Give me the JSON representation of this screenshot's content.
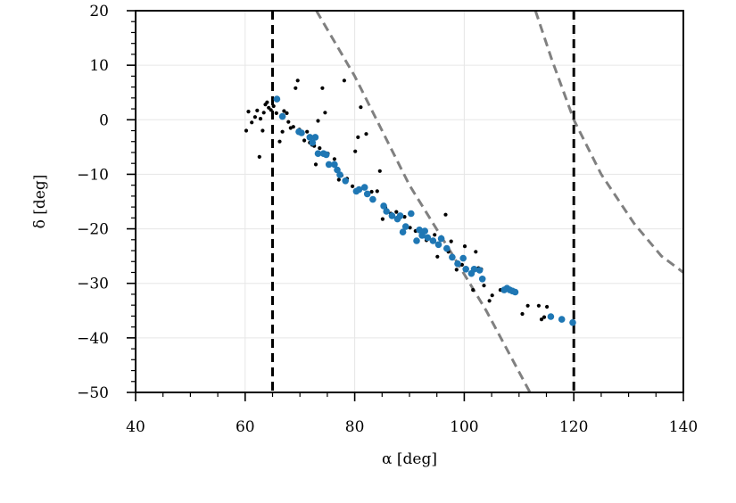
{
  "chart_data": {
    "type": "scatter",
    "xlabel": "α [deg]",
    "ylabel": "δ [deg]",
    "xlim": [
      40,
      140
    ],
    "ylim": [
      -50,
      20
    ],
    "xticks": [
      40,
      60,
      80,
      100,
      120,
      140
    ],
    "yticks": [
      20,
      10,
      0,
      -10,
      -20,
      -30,
      -40,
      -50
    ],
    "xtick_labels": [
      "40",
      "60",
      "80",
      "100",
      "120",
      "140"
    ],
    "ytick_labels": [
      "20",
      "10",
      "0",
      "−10",
      "−20",
      "−30",
      "−40",
      "−50"
    ],
    "grid": true,
    "vertical_lines": [
      65,
      120
    ],
    "curves": [
      {
        "style": "dashed",
        "color": "#808080",
        "points": [
          [
            73,
            20
          ],
          [
            80,
            8
          ],
          [
            90,
            -12
          ],
          [
            98,
            -25
          ],
          [
            104,
            -35
          ],
          [
            112,
            -50
          ]
        ]
      },
      {
        "style": "dashed",
        "color": "#808080",
        "points": [
          [
            113,
            20
          ],
          [
            116,
            11
          ],
          [
            120,
            0
          ],
          [
            125,
            -10
          ],
          [
            131,
            -19
          ],
          [
            136,
            -25
          ],
          [
            140,
            -28
          ]
        ]
      }
    ],
    "series": [
      {
        "color": "#000000",
        "marker": "small-dot",
        "points": [
          [
            60.2,
            -2
          ],
          [
            60.6,
            1.5
          ],
          [
            61.2,
            -0.5
          ],
          [
            61.8,
            0.5
          ],
          [
            62.2,
            1.7
          ],
          [
            62.6,
            -6.8
          ],
          [
            62.8,
            0.2
          ],
          [
            63.2,
            -2
          ],
          [
            63.4,
            1.3
          ],
          [
            63.7,
            2.8
          ],
          [
            64,
            3.2
          ],
          [
            64.3,
            2.2
          ],
          [
            64.7,
            1.8
          ],
          [
            65.2,
            2.5
          ],
          [
            65.7,
            1.2
          ],
          [
            66.3,
            -4
          ],
          [
            66.8,
            -2.2
          ],
          [
            67.1,
            1.6
          ],
          [
            67.6,
            1.2
          ],
          [
            67.9,
            -0.4
          ],
          [
            68.3,
            -1.5
          ],
          [
            68.8,
            -1.3
          ],
          [
            69.2,
            5.8
          ],
          [
            69.6,
            7.2
          ],
          [
            69.9,
            -1.8
          ],
          [
            70.3,
            -2.4
          ],
          [
            70.8,
            -3.8
          ],
          [
            71.3,
            -2.2
          ],
          [
            71.8,
            -4.2
          ],
          [
            72.2,
            -4.6
          ],
          [
            72.6,
            -4.8
          ],
          [
            72.9,
            -8.2
          ],
          [
            73.3,
            -0.2
          ],
          [
            73.6,
            -5.2
          ],
          [
            74.1,
            5.8
          ],
          [
            74.6,
            1.3
          ],
          [
            75.1,
            -6.2
          ],
          [
            76.3,
            -7.2
          ],
          [
            77.1,
            -11
          ],
          [
            77.6,
            -10.2
          ],
          [
            78.1,
            7.2
          ],
          [
            78.6,
            -10.8
          ],
          [
            79.6,
            -12.2
          ],
          [
            80.1,
            -5.8
          ],
          [
            80.6,
            -3.2
          ],
          [
            81.1,
            2.3
          ],
          [
            82.1,
            -2.6
          ],
          [
            83.1,
            -13.2
          ],
          [
            84.1,
            -13.1
          ],
          [
            84.6,
            -9.4
          ],
          [
            85.1,
            -18.2
          ],
          [
            85.6,
            -16.1
          ],
          [
            86.6,
            -17.2
          ],
          [
            87.6,
            -16.9
          ],
          [
            88.1,
            -18.1
          ],
          [
            89.1,
            -17.8
          ],
          [
            90.1,
            -19.8
          ],
          [
            91.1,
            -20.4
          ],
          [
            92.1,
            -20.3
          ],
          [
            93.1,
            -22.1
          ],
          [
            94.6,
            -21.1
          ],
          [
            95.1,
            -25.1
          ],
          [
            96.6,
            -17.4
          ],
          [
            97.1,
            -24.2
          ],
          [
            97.6,
            -22.3
          ],
          [
            98.6,
            -27.5
          ],
          [
            99.6,
            -26.6
          ],
          [
            100.1,
            -23.2
          ],
          [
            101.1,
            -28.2
          ],
          [
            101.6,
            -31.2
          ],
          [
            102.1,
            -24.2
          ],
          [
            102.6,
            -27.2
          ],
          [
            103.1,
            -27.4
          ],
          [
            103.6,
            -30.4
          ],
          [
            104.6,
            -33.2
          ],
          [
            105.1,
            -32.2
          ],
          [
            106.6,
            -31.2
          ],
          [
            107.1,
            -31.4
          ],
          [
            110.6,
            -35.6
          ],
          [
            111.6,
            -34.1
          ],
          [
            113.6,
            -34.1
          ],
          [
            114.1,
            -36.6
          ],
          [
            114.6,
            -36.2
          ],
          [
            115.1,
            -34.3
          ]
        ]
      },
      {
        "color": "#1f77b4",
        "marker": "dot",
        "points": [
          [
            65.8,
            3.8
          ],
          [
            66.8,
            0.6
          ],
          [
            69.8,
            -2.2
          ],
          [
            70.3,
            -2.4
          ],
          [
            71.8,
            -3.2
          ],
          [
            72.3,
            -4.2
          ],
          [
            72.8,
            -3.2
          ],
          [
            73.3,
            -6.2
          ],
          [
            74.3,
            -6.2
          ],
          [
            74.8,
            -6.4
          ],
          [
            75.3,
            -8.2
          ],
          [
            76.3,
            -8.2
          ],
          [
            76.8,
            -9.2
          ],
          [
            77.3,
            -10.1
          ],
          [
            78.3,
            -11.2
          ],
          [
            80.3,
            -13.1
          ],
          [
            80.8,
            -12.8
          ],
          [
            81.8,
            -12.4
          ],
          [
            82.3,
            -13.6
          ],
          [
            83.3,
            -14.6
          ],
          [
            85.3,
            -15.8
          ],
          [
            85.8,
            -16.8
          ],
          [
            86.8,
            -17.6
          ],
          [
            87.8,
            -18.2
          ],
          [
            88.3,
            -17.6
          ],
          [
            88.8,
            -20.6
          ],
          [
            89.3,
            -19.6
          ],
          [
            90.3,
            -17.2
          ],
          [
            91.3,
            -22.2
          ],
          [
            91.8,
            -20.2
          ],
          [
            92.3,
            -21.2
          ],
          [
            92.8,
            -20.4
          ],
          [
            93.3,
            -21.6
          ],
          [
            94.3,
            -22.2
          ],
          [
            95.3,
            -22.9
          ],
          [
            95.8,
            -21.8
          ],
          [
            96.8,
            -23.6
          ],
          [
            97.8,
            -25.2
          ],
          [
            98.8,
            -26.4
          ],
          [
            99.8,
            -25.4
          ],
          [
            100.3,
            -27.4
          ],
          [
            101.3,
            -28.2
          ],
          [
            101.8,
            -27.4
          ],
          [
            102.8,
            -27.6
          ],
          [
            103.3,
            -29.2
          ],
          [
            107.3,
            -31.2
          ],
          [
            107.8,
            -30.9
          ],
          [
            108.3,
            -31.2
          ],
          [
            108.8,
            -31.4
          ],
          [
            109.3,
            -31.6
          ],
          [
            115.8,
            -36.1
          ],
          [
            117.8,
            -36.6
          ],
          [
            119.8,
            -37.2
          ]
        ]
      }
    ]
  }
}
